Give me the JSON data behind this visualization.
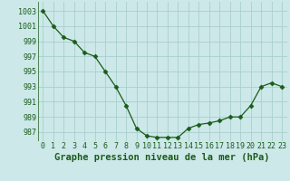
{
  "x": [
    0,
    1,
    2,
    3,
    4,
    5,
    6,
    7,
    8,
    9,
    10,
    11,
    12,
    13,
    14,
    15,
    16,
    17,
    18,
    19,
    20,
    21,
    22,
    23
  ],
  "y": [
    1003,
    1001,
    999.5,
    999,
    997.5,
    997,
    995,
    993,
    990.5,
    987.5,
    986.5,
    986.3,
    986.3,
    986.3,
    987.5,
    988,
    988.2,
    988.5,
    989,
    989,
    990.5,
    993,
    993.5,
    993
  ],
  "line_color": "#1a5c1a",
  "marker": "D",
  "marker_size": 2.5,
  "bg_color": "#cce8e8",
  "grid_color": "#aacece",
  "ylabel_ticks": [
    987,
    989,
    991,
    993,
    995,
    997,
    999,
    1001,
    1003
  ],
  "xlabel": "Graphe pression niveau de la mer (hPa)",
  "ylim": [
    985.8,
    1004.2
  ],
  "xlim": [
    -0.5,
    23.5
  ],
  "tick_color": "#1a5c1a",
  "label_fontsize": 6,
  "xlabel_fontsize": 7.5
}
